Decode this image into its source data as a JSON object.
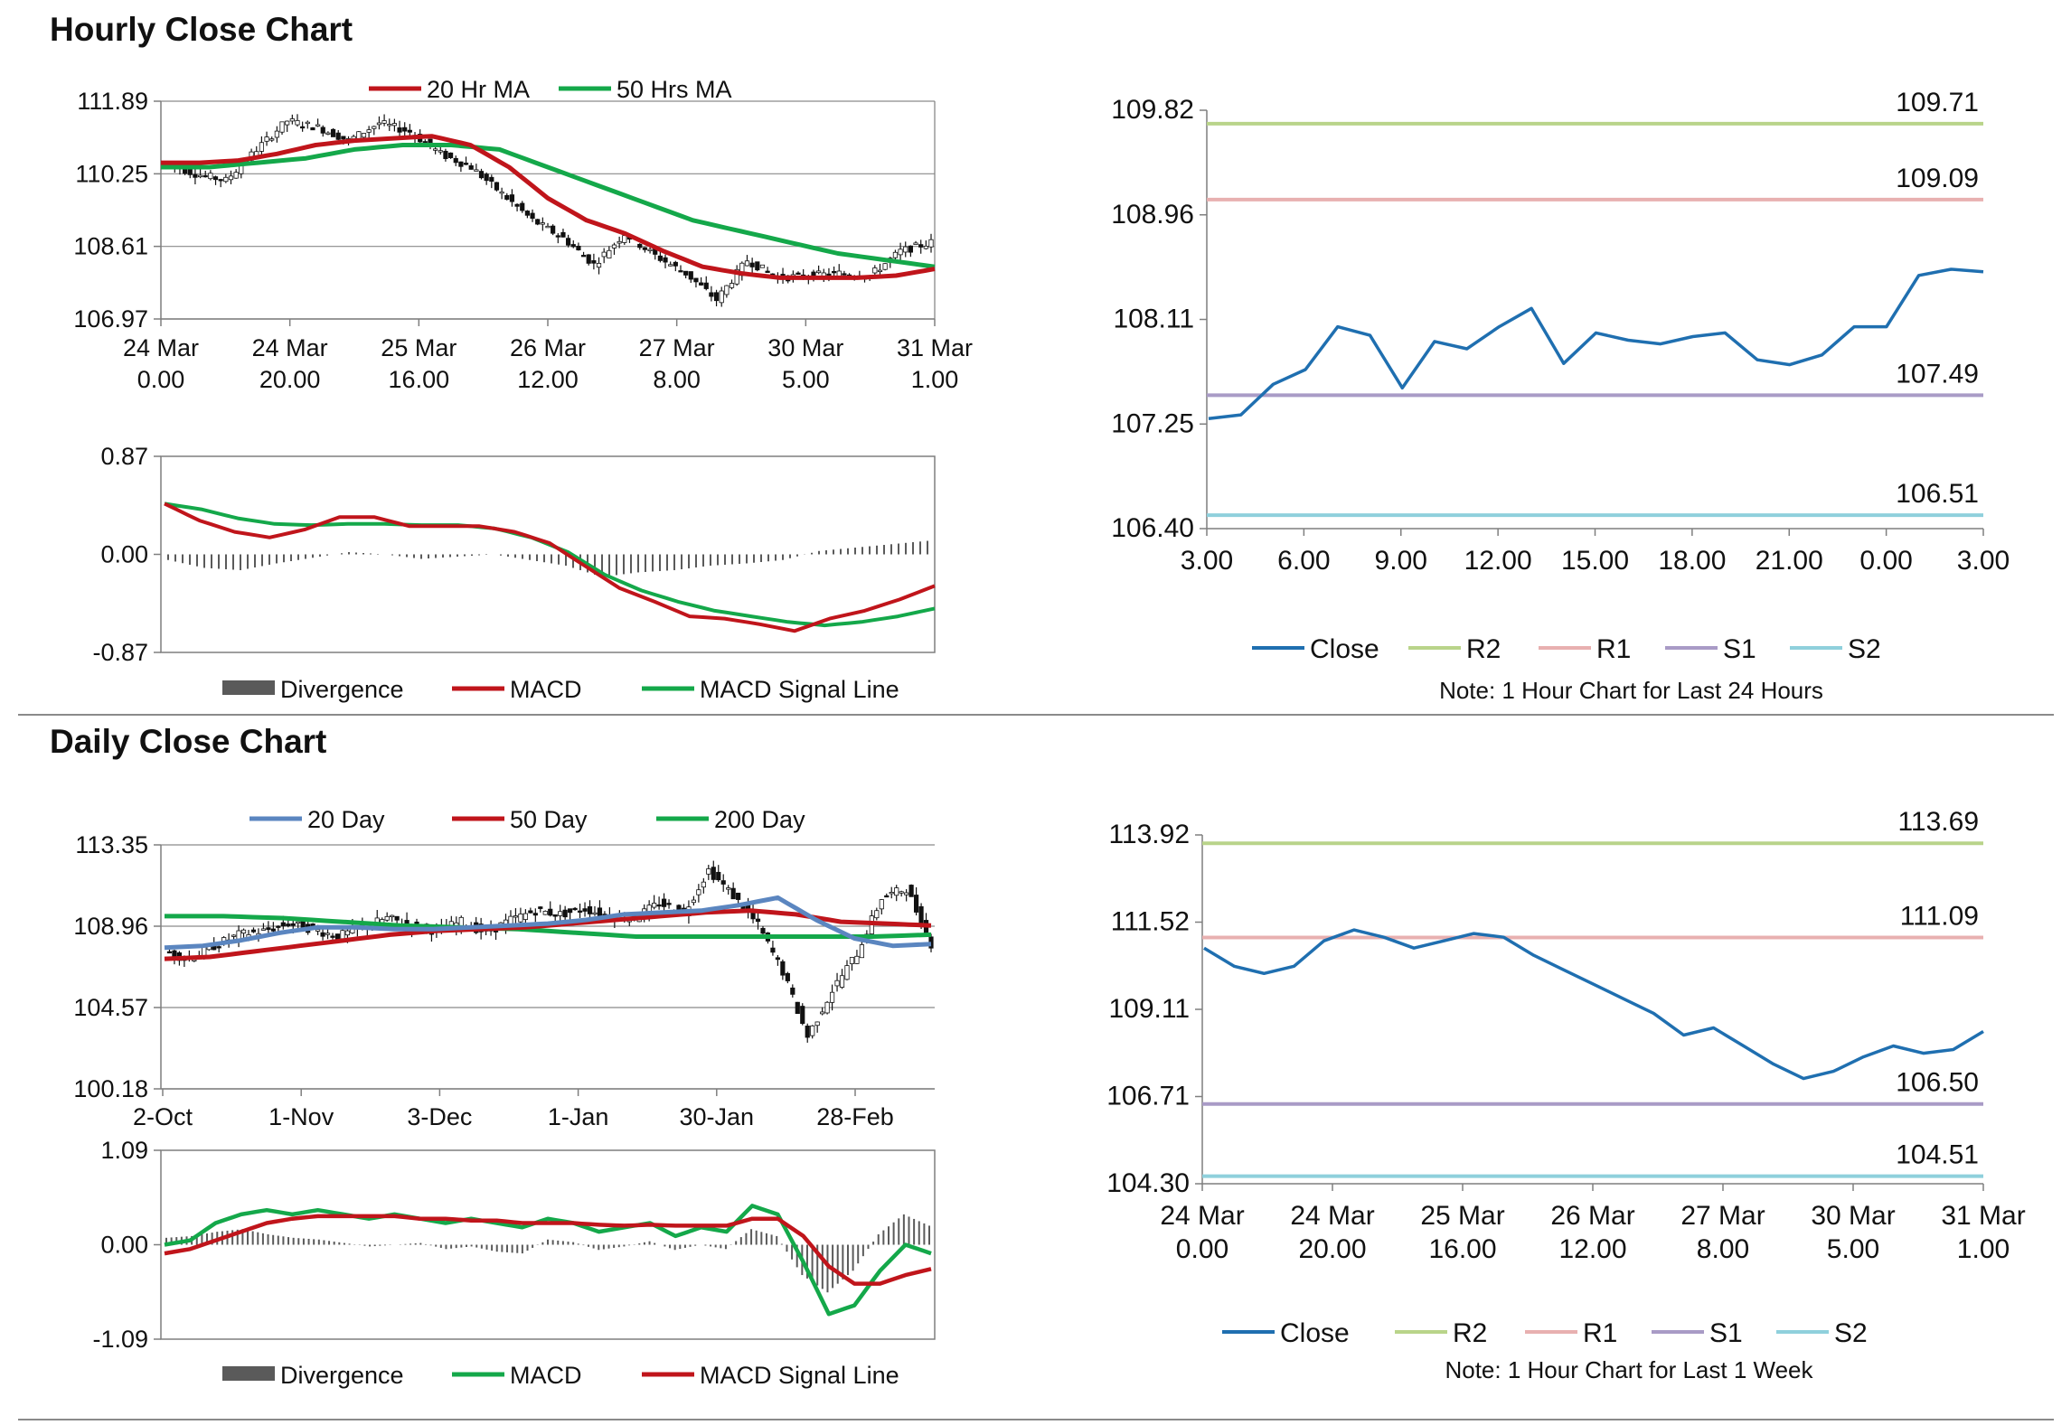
{
  "sections": {
    "hourly_title": "Hourly Close Chart",
    "daily_title": "Daily Close Chart"
  },
  "colors": {
    "ma20": "#c0151b",
    "ma50": "#14a84a",
    "close": "#1f6fb0",
    "r2": "#b9d48a",
    "r1": "#e8b0b0",
    "s1": "#a99bc6",
    "s2": "#8fd0dc",
    "day20": "#5b86c0",
    "divergence": "#5a5a5a"
  },
  "chart_data": [
    {
      "id": "hourly_candles",
      "type": "candlestick",
      "ylim": [
        106.97,
        111.89
      ],
      "yticks": [
        "111.89",
        "110.25",
        "108.61",
        "106.97"
      ],
      "xticks": [
        [
          "24 Mar",
          "0.00"
        ],
        [
          "24 Mar",
          "20.00"
        ],
        [
          "25 Mar",
          "16.00"
        ],
        [
          "26 Mar",
          "12.00"
        ],
        [
          "27 Mar",
          "8.00"
        ],
        [
          "30 Mar",
          "5.00"
        ],
        [
          "31 Mar",
          "1.00"
        ]
      ],
      "legend": [
        "20 Hr MA",
        "50 Hrs MA"
      ],
      "close": [
        110.5,
        110.25,
        110.1,
        110.8,
        111.45,
        111.3,
        111.0,
        111.4,
        111.2,
        110.7,
        110.4,
        109.8,
        109.2,
        108.8,
        108.2,
        108.9,
        108.4,
        108.0,
        107.4,
        108.3,
        107.9,
        107.95,
        108.0,
        107.95,
        108.5,
        108.7
      ],
      "ma20": [
        110.5,
        110.5,
        110.55,
        110.7,
        110.9,
        111.0,
        111.05,
        111.1,
        110.9,
        110.4,
        109.7,
        109.2,
        108.9,
        108.5,
        108.15,
        108.0,
        107.9,
        107.9,
        107.9,
        107.95,
        108.1
      ],
      "ma50": [
        110.4,
        110.4,
        110.5,
        110.6,
        110.8,
        110.9,
        110.9,
        110.8,
        110.4,
        110.0,
        109.6,
        109.2,
        108.95,
        108.7,
        108.45,
        108.3,
        108.15
      ],
      "ma20_range": [
        0,
        1
      ],
      "ma50_range": [
        0,
        1
      ]
    },
    {
      "id": "hourly_macd",
      "type": "line",
      "ylim": [
        -0.87,
        0.87
      ],
      "yticks": [
        "0.87",
        "0.00",
        "-0.87"
      ],
      "legend": [
        "Divergence",
        "MACD",
        "MACD Signal Line"
      ],
      "macd": [
        0.45,
        0.3,
        0.2,
        0.15,
        0.22,
        0.33,
        0.33,
        0.25,
        0.25,
        0.25,
        0.2,
        0.1,
        -0.1,
        -0.3,
        -0.42,
        -0.55,
        -0.57,
        -0.62,
        -0.68,
        -0.57,
        -0.5,
        -0.4,
        -0.28
      ],
      "signal": [
        0.45,
        0.4,
        0.32,
        0.27,
        0.26,
        0.27,
        0.27,
        0.26,
        0.26,
        0.23,
        0.15,
        0.02,
        -0.18,
        -0.32,
        -0.42,
        -0.5,
        -0.55,
        -0.6,
        -0.63,
        -0.6,
        -0.55,
        -0.48
      ],
      "divergence": [
        -0.05,
        -0.12,
        -0.14,
        -0.08,
        -0.03,
        0.02,
        0.0,
        -0.04,
        -0.02,
        0.0,
        -0.05,
        -0.1,
        -0.2,
        -0.16,
        -0.14,
        -0.1,
        -0.08,
        -0.05,
        0.03,
        0.06,
        0.09,
        0.12
      ]
    },
    {
      "id": "hourly_24h",
      "type": "line",
      "ylim": [
        106.4,
        109.82
      ],
      "yticks": [
        "109.82",
        "108.96",
        "108.11",
        "107.25",
        "106.40"
      ],
      "xticks": [
        "3.00",
        "6.00",
        "9.00",
        "12.00",
        "15.00",
        "18.00",
        "21.00",
        "0.00",
        "3.00"
      ],
      "close": [
        107.3,
        107.33,
        107.58,
        107.7,
        108.05,
        107.98,
        107.55,
        107.93,
        107.87,
        108.05,
        108.2,
        107.75,
        108.0,
        107.94,
        107.91,
        107.97,
        108.0,
        107.78,
        107.74,
        107.82,
        108.05,
        108.05,
        108.47,
        108.52,
        108.5
      ],
      "levels": {
        "R2": 109.71,
        "R1": 109.09,
        "S1": 107.49,
        "S2": 106.51
      },
      "level_labels": {
        "R2": "109.71",
        "R1": "109.09",
        "S1": "107.49",
        "S2": "106.51"
      },
      "legend": [
        "Close",
        "R2",
        "R1",
        "S1",
        "S2"
      ],
      "note": "Note: 1 Hour Chart for Last 24 Hours"
    },
    {
      "id": "daily_candles",
      "type": "candlestick",
      "ylim": [
        100.18,
        113.35
      ],
      "yticks": [
        "113.35",
        "108.96",
        "104.57",
        "100.18"
      ],
      "xticks": [
        "2-Oct",
        "1-Nov",
        "3-Dec",
        "1-Jan",
        "30-Jan",
        "28-Feb"
      ],
      "legend": [
        "20 Day",
        "50 Day",
        "200 Day"
      ],
      "close": [
        107.6,
        107.2,
        107.9,
        108.5,
        108.7,
        109.1,
        108.8,
        108.4,
        108.9,
        109.4,
        109.0,
        108.7,
        109.2,
        108.6,
        109.3,
        109.8,
        109.6,
        109.9,
        109.5,
        109.4,
        110.2,
        109.7,
        112.0,
        110.6,
        109.0,
        106.5,
        103.0,
        105.5,
        107.5,
        110.5,
        111.0,
        108.0
      ],
      "day20": [
        107.8,
        107.9,
        108.2,
        108.6,
        108.9,
        108.9,
        108.8,
        108.8,
        108.9,
        109.0,
        109.1,
        109.3,
        109.6,
        109.7,
        109.8,
        110.1,
        110.5,
        109.3,
        108.3,
        107.9,
        108.0
      ],
      "day50": [
        107.2,
        107.3,
        107.6,
        107.9,
        108.2,
        108.5,
        108.7,
        108.8,
        108.9,
        109.1,
        109.3,
        109.5,
        109.7,
        109.8,
        109.6,
        109.2,
        109.1,
        109.0
      ],
      "day200": [
        109.5,
        109.5,
        109.4,
        109.2,
        109.0,
        108.9,
        108.8,
        108.6,
        108.4,
        108.4,
        108.4,
        108.4,
        108.4,
        108.5
      ]
    },
    {
      "id": "daily_macd",
      "type": "line",
      "ylim": [
        -1.09,
        1.09
      ],
      "yticks": [
        "1.09",
        "0.00",
        "-1.09"
      ],
      "legend": [
        "Divergence",
        "MACD",
        "MACD Signal Line"
      ],
      "macd": [
        0.0,
        0.05,
        0.25,
        0.35,
        0.4,
        0.35,
        0.4,
        0.35,
        0.3,
        0.35,
        0.3,
        0.25,
        0.3,
        0.25,
        0.2,
        0.3,
        0.25,
        0.15,
        0.2,
        0.25,
        0.1,
        0.2,
        0.15,
        0.45,
        0.35,
        -0.2,
        -0.8,
        -0.7,
        -0.3,
        0.0,
        -0.1
      ],
      "signal": [
        -0.1,
        -0.05,
        0.05,
        0.15,
        0.25,
        0.3,
        0.33,
        0.33,
        0.33,
        0.33,
        0.3,
        0.3,
        0.28,
        0.28,
        0.25,
        0.25,
        0.25,
        0.23,
        0.22,
        0.23,
        0.22,
        0.22,
        0.22,
        0.3,
        0.3,
        0.1,
        -0.25,
        -0.45,
        -0.45,
        -0.35,
        -0.28
      ],
      "divergence": [
        0.08,
        0.1,
        0.15,
        0.18,
        0.12,
        0.08,
        0.06,
        0.02,
        -0.02,
        0.0,
        0.02,
        -0.05,
        -0.02,
        -0.08,
        -0.1,
        0.06,
        0.03,
        -0.06,
        -0.02,
        0.04,
        -0.06,
        0.0,
        -0.05,
        0.18,
        0.1,
        -0.35,
        -0.55,
        -0.3,
        0.12,
        0.35,
        0.22
      ]
    },
    {
      "id": "weekly_hourly",
      "type": "line",
      "ylim": [
        104.3,
        113.92
      ],
      "yticks": [
        "113.92",
        "111.52",
        "109.11",
        "106.71",
        "104.30"
      ],
      "xticks": [
        [
          "24 Mar",
          "0.00"
        ],
        [
          "24 Mar",
          "20.00"
        ],
        [
          "25 Mar",
          "16.00"
        ],
        [
          "26 Mar",
          "12.00"
        ],
        [
          "27 Mar",
          "8.00"
        ],
        [
          "30 Mar",
          "5.00"
        ],
        [
          "31 Mar",
          "1.00"
        ]
      ],
      "close": [
        110.8,
        110.3,
        110.1,
        110.3,
        111.0,
        111.3,
        111.1,
        110.8,
        111.0,
        111.2,
        111.1,
        110.6,
        110.2,
        109.8,
        109.4,
        109.0,
        108.4,
        108.6,
        108.1,
        107.6,
        107.2,
        107.4,
        107.8,
        108.1,
        107.9,
        108.0,
        108.5
      ],
      "levels": {
        "R2": 113.69,
        "R1": 111.09,
        "S1": 106.5,
        "S2": 104.51
      },
      "level_labels": {
        "R2": "113.69",
        "R1": "111.09",
        "S1": "106.50",
        "S2": "104.51"
      },
      "legend": [
        "Close",
        "R2",
        "R1",
        "S1",
        "S2"
      ],
      "note": "Note: 1 Hour Chart for Last 1 Week"
    }
  ]
}
